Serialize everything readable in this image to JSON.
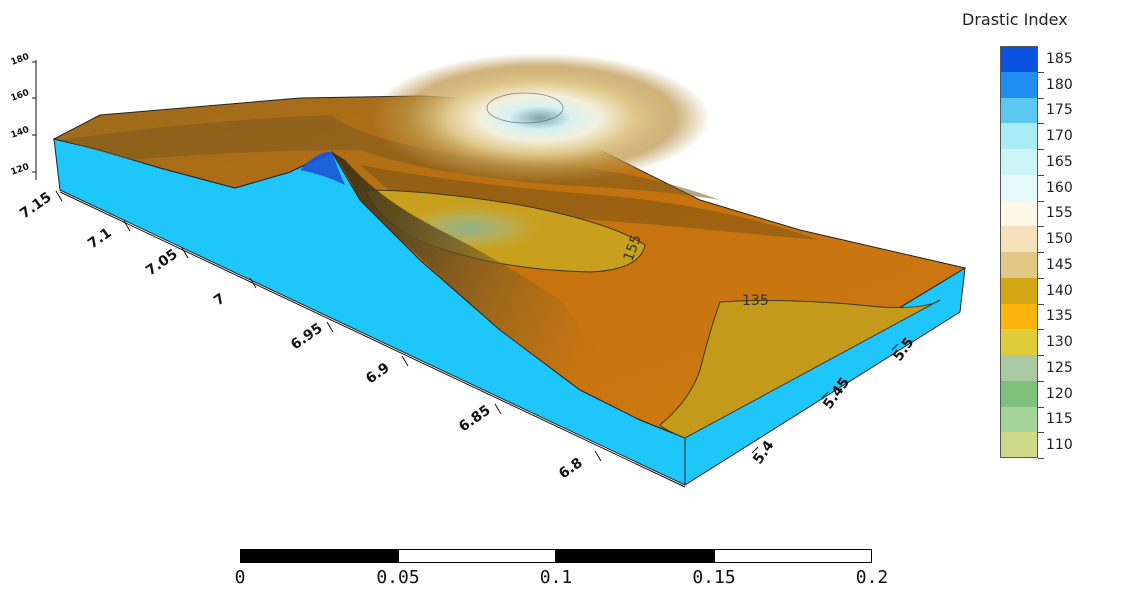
{
  "legend": {
    "title": "Drastic Index",
    "classes": [
      {
        "label": "185",
        "color": "#0b52e0"
      },
      {
        "label": "180",
        "color": "#1e8ff0"
      },
      {
        "label": "175",
        "color": "#5bc8ef"
      },
      {
        "label": "170",
        "color": "#a9ecf5"
      },
      {
        "label": "165",
        "color": "#cdf5f8"
      },
      {
        "label": "160",
        "color": "#e6f9fa"
      },
      {
        "label": "155",
        "color": "#fdf8e8"
      },
      {
        "label": "150",
        "color": "#f6e1ba"
      },
      {
        "label": "145",
        "color": "#e2c886"
      },
      {
        "label": "140",
        "color": "#d4a514"
      },
      {
        "label": "135",
        "color": "#fcb30c"
      },
      {
        "label": "130",
        "color": "#e0cc3a"
      },
      {
        "label": "125",
        "color": "#aac9a4"
      },
      {
        "label": "120",
        "color": "#7fc07c"
      },
      {
        "label": "115",
        "color": "#a5d49a"
      },
      {
        "label": "110",
        "color": "#cfd98a"
      }
    ]
  },
  "axes": {
    "left_ticks": [
      "7.15",
      "7.1",
      "7.05",
      "7",
      "6.95",
      "6.9",
      "6.85",
      "6.8"
    ],
    "right_ticks": [
      "5.4",
      "5.45",
      "5.5"
    ],
    "vertical_ticks": [
      "180",
      "160",
      "140",
      "120"
    ]
  },
  "contour_labels": [
    "135",
    "155"
  ],
  "scale_bar": {
    "labels": [
      "0",
      "0.05",
      "0.1",
      "0.15",
      "0.2"
    ]
  },
  "colors": {
    "block_side": "#1ec6fa",
    "surface_base": "#c8740c",
    "surface_dark": "#5a3b0c"
  }
}
